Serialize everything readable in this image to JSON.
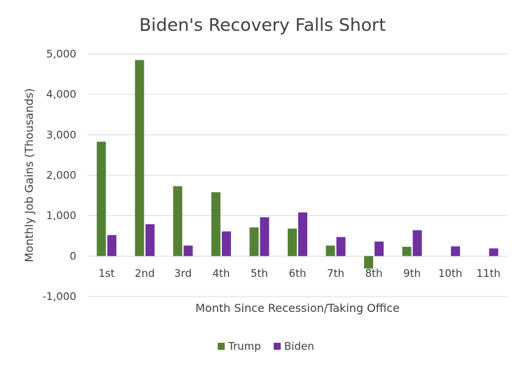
{
  "chart_data": {
    "type": "bar",
    "title": "Biden's Recovery Falls Short",
    "xlabel": "Month Since Recession/Taking Office",
    "ylabel": "Monthly Job Gains (Thousands)",
    "ylim": [
      -1000,
      5000
    ],
    "yticks": [
      "5,000",
      "4,000",
      "3,000",
      "2,000",
      "1,000",
      "0",
      "-1,000"
    ],
    "ytick_values": [
      5000,
      4000,
      3000,
      2000,
      1000,
      0,
      -1000
    ],
    "grid": true,
    "legend_position": "bottom",
    "categories": [
      "1st",
      "2nd",
      "3rd",
      "4th",
      "5th",
      "6th",
      "7th",
      "8th",
      "9th",
      "10th",
      "11th"
    ],
    "series": [
      {
        "name": "Trump",
        "color": "#548235",
        "values": [
          2830,
          4850,
          1730,
          1580,
          710,
          680,
          260,
          -310,
          230,
          null,
          null
        ]
      },
      {
        "name": "Biden",
        "color": "#7030a0",
        "values": [
          520,
          790,
          260,
          610,
          960,
          1080,
          470,
          360,
          640,
          240,
          190
        ]
      }
    ]
  }
}
